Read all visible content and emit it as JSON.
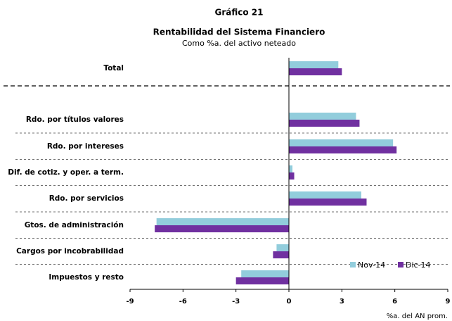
{
  "chart_data": {
    "type": "bar",
    "orientation": "horizontal",
    "chart_number": "Gráfico 21",
    "title": "Rentabilidad del Sistema Financiero",
    "subtitle": "Como %a. del activo neteado",
    "x_label": "%a. del AN prom.",
    "categories": [
      "Total",
      "Rdo. por títulos valores",
      "Rdo. por intereses",
      "Dif. de cotiz. y oper. a term.",
      "Rdo. por servicios",
      "Gtos. de administración",
      "Cargos por incobrabilidad",
      "Impuestos y resto"
    ],
    "series": [
      {
        "name": "Nov-14",
        "color": "#92cddc",
        "values": [
          2.8,
          3.8,
          5.9,
          0.2,
          4.1,
          -7.5,
          -0.7,
          -2.7
        ]
      },
      {
        "name": "Dic-14",
        "color": "#7030a0",
        "values": [
          3.0,
          4.0,
          6.1,
          0.3,
          4.4,
          -7.6,
          -0.9,
          -3.0
        ]
      }
    ],
    "xlim": [
      -9,
      9
    ],
    "xticks": [
      -9,
      -6,
      -3,
      0,
      3,
      6,
      9
    ],
    "legend": "lower right"
  }
}
